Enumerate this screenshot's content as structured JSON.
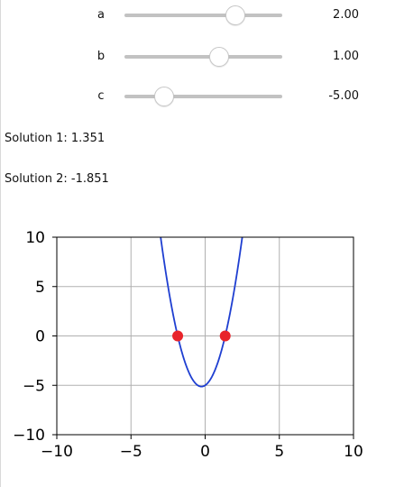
{
  "sliders": [
    {
      "label": "a",
      "value_text": "2.00",
      "value": 2.0,
      "min": -5,
      "max": 5
    },
    {
      "label": "b",
      "value_text": "1.00",
      "value": 1.0,
      "min": -5,
      "max": 5
    },
    {
      "label": "c",
      "value_text": "-5.00",
      "value": -5.0,
      "min": -10,
      "max": 10
    }
  ],
  "solutions": [
    {
      "label": "Solution 1:",
      "value": "1.351"
    },
    {
      "label": "Solution 2:",
      "value": "-1.851"
    }
  ],
  "chart_data": {
    "type": "line",
    "title": "",
    "xlabel": "",
    "ylabel": "",
    "xlim": [
      -10,
      10
    ],
    "ylim": [
      -10,
      10
    ],
    "grid": true,
    "x_ticks": [
      -10,
      -5,
      0,
      5,
      10
    ],
    "y_ticks": [
      -10,
      -5,
      0,
      5,
      10
    ],
    "x_tick_labels": [
      "−10",
      "−5",
      "0",
      "5",
      "10"
    ],
    "y_tick_labels": [
      "−10",
      "−5",
      "0",
      "5",
      "10"
    ],
    "series": [
      {
        "function": "quadratic",
        "a": 2.0,
        "b": 1.0,
        "c": -5.0,
        "color": "#1f3fd1"
      }
    ],
    "points": [
      {
        "x": -1.851,
        "y": 0,
        "color": "#e8242b"
      },
      {
        "x": 1.351,
        "y": 0,
        "color": "#e8242b"
      }
    ]
  }
}
